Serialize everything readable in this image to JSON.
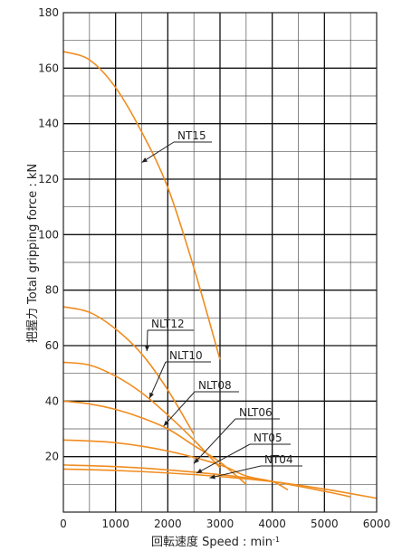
{
  "chart_data": {
    "type": "line",
    "title": "",
    "xlabel": "回転速度 Speed : min",
    "xlabel_sup": "-1",
    "ylabel": "把握力  Total gripping force : kN",
    "xlim": [
      0,
      6000
    ],
    "ylim": [
      0,
      180
    ],
    "x_ticks": [
      0,
      1000,
      2000,
      3000,
      4000,
      5000,
      6000
    ],
    "y_ticks": [
      20,
      40,
      60,
      80,
      100,
      120,
      140,
      160,
      180
    ],
    "x_minor_step": 500,
    "y_minor_step": 10,
    "grid": true,
    "line_color": "#f08c1e",
    "series": [
      {
        "name": "NT15",
        "points": [
          [
            0,
            166
          ],
          [
            500,
            163
          ],
          [
            1000,
            153
          ],
          [
            1500,
            137
          ],
          [
            2000,
            117
          ],
          [
            2500,
            88
          ],
          [
            3000,
            55
          ]
        ]
      },
      {
        "name": "NLT12",
        "points": [
          [
            0,
            74
          ],
          [
            500,
            72
          ],
          [
            1000,
            66
          ],
          [
            1500,
            57
          ],
          [
            2000,
            44
          ],
          [
            2500,
            28
          ]
        ]
      },
      {
        "name": "NLT10",
        "points": [
          [
            0,
            54
          ],
          [
            500,
            53
          ],
          [
            1000,
            49
          ],
          [
            1500,
            43
          ],
          [
            2000,
            35
          ],
          [
            2500,
            26
          ],
          [
            3000,
            16
          ]
        ]
      },
      {
        "name": "NLT08",
        "points": [
          [
            0,
            40
          ],
          [
            500,
            39
          ],
          [
            1000,
            37
          ],
          [
            1500,
            34
          ],
          [
            2000,
            30
          ],
          [
            2500,
            24
          ],
          [
            3000,
            18
          ],
          [
            3500,
            10
          ]
        ]
      },
      {
        "name": "NLT06",
        "points": [
          [
            0,
            26
          ],
          [
            1000,
            25
          ],
          [
            2000,
            22
          ],
          [
            3000,
            17
          ],
          [
            3500,
            13
          ],
          [
            4000,
            11
          ],
          [
            4300,
            8
          ]
        ]
      },
      {
        "name": "NT05",
        "points": [
          [
            0,
            17
          ],
          [
            1000,
            16.4
          ],
          [
            2000,
            15.2
          ],
          [
            3000,
            13.5
          ],
          [
            4000,
            11
          ],
          [
            5000,
            7.5
          ],
          [
            5500,
            5.5
          ]
        ]
      },
      {
        "name": "NT04",
        "points": [
          [
            0,
            15.5
          ],
          [
            1000,
            15
          ],
          [
            2000,
            14.1
          ],
          [
            3000,
            12.8
          ],
          [
            4000,
            11
          ],
          [
            5000,
            8.3
          ],
          [
            6000,
            5
          ]
        ]
      }
    ],
    "annotations": [
      {
        "series": "NT15",
        "label": "NT15",
        "at": [
          1500,
          126
        ]
      },
      {
        "series": "NLT12",
        "label": "NLT12",
        "at": [
          1600,
          58
        ]
      },
      {
        "series": "NLT10",
        "label": "NLT10",
        "at": [
          1650,
          41
        ]
      },
      {
        "series": "NLT08",
        "label": "NLT08",
        "at": [
          1920,
          31
        ]
      },
      {
        "series": "NLT06",
        "label": "NLT06",
        "at": [
          2500,
          17.5
        ]
      },
      {
        "series": "NT05",
        "label": "NT05",
        "at": [
          2550,
          14
        ]
      },
      {
        "series": "NT04",
        "label": "NT04",
        "at": [
          2800,
          12.3
        ]
      }
    ]
  }
}
